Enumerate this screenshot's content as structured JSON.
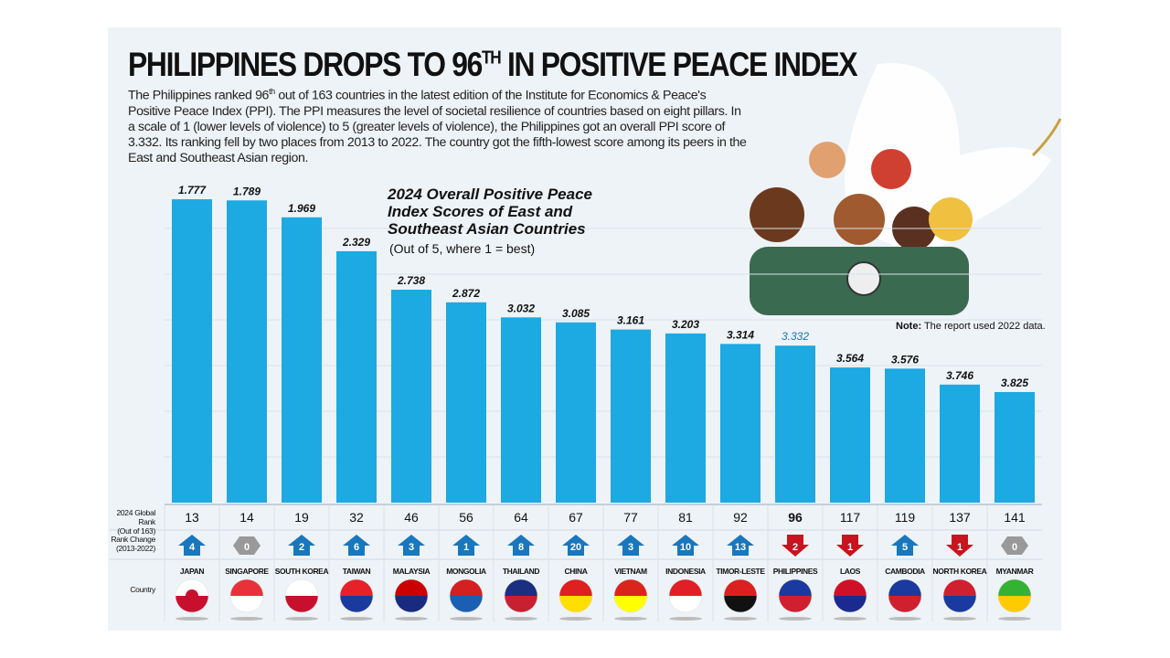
{
  "headline": {
    "main": "PHILIPPINES DROPS TO 96",
    "sup": "TH",
    "rest": " IN POSITIVE PEACE INDEX"
  },
  "intro": {
    "part1": "The Philippines ranked 96",
    "sup": "th",
    "part2": " out of 163 countries in the latest edition of the Institute for Economics & Peace's Positive Peace Index (PPI). The PPI measures the level of societal resilience of countries based on eight pillars. In a scale of 1 (lower levels of violence) to 5 (greater levels of violence), the Philippines got an overall PPI score of 3.332. Its ranking fell by two places from 2013 to 2022. The country got the fifth-lowest score among its peers in the East and Southeast Asian region."
  },
  "note": {
    "label": "Note:",
    "text": " The report used 2022 data."
  },
  "row_labels": {
    "rank": [
      "2024 Global Rank",
      "(Out of 163)"
    ],
    "change": [
      "Rank Change",
      "(2013-2022)"
    ],
    "country": "Country"
  },
  "colors": {
    "bar": "#1da9e1",
    "highlight_text": "#1a75b8",
    "up": "#1877bd",
    "down": "#c8141e",
    "same": "#999999",
    "panel": "#eef3f7"
  },
  "chart_data": {
    "type": "bar",
    "title": "2024 Overall Positive Peace Index Scores of East and Southeast Asian Countries",
    "subtitle": "(Out of 5, where 1 = best)",
    "highlight": "PHILIPPINES",
    "categories": [
      "JAPAN",
      "SINGAPORE",
      "SOUTH KOREA",
      "TAIWAN",
      "MALAYSIA",
      "MONGOLIA",
      "THAILAND",
      "CHINA",
      "VIETNAM",
      "INDONESIA",
      "TIMOR-LESTE",
      "PHILIPPINES",
      "LAOS",
      "CAMBODIA",
      "NORTH KOREA",
      "MYANMAR"
    ],
    "values": [
      1.777,
      1.789,
      1.969,
      2.329,
      2.738,
      2.872,
      3.032,
      3.085,
      3.161,
      3.203,
      3.314,
      3.332,
      3.564,
      3.576,
      3.746,
      3.825
    ],
    "value_labels": [
      "1.777",
      "1.789",
      "1.969",
      "2.329",
      "2.738",
      "2.872",
      "3.032",
      "3.085",
      "3.161",
      "3.203",
      "3.314",
      "3.332",
      "3.564",
      "3.576",
      "3.746",
      "3.825"
    ],
    "global_rank": [
      "13",
      "14",
      "19",
      "32",
      "46",
      "56",
      "64",
      "67",
      "77",
      "81",
      "92",
      "96",
      "117",
      "119",
      "137",
      "141"
    ],
    "rank_change": [
      "4",
      "0",
      "2",
      "6",
      "3",
      "1",
      "8",
      "20",
      "3",
      "10",
      "13",
      "2",
      "1",
      "5",
      "1",
      "0"
    ],
    "rank_direction": [
      "up",
      "same",
      "up",
      "up",
      "up",
      "up",
      "up",
      "up",
      "up",
      "up",
      "up",
      "down",
      "down",
      "up",
      "down",
      "same"
    ],
    "scale": "inverted, 1 = best",
    "ylim": [
      1,
      5
    ],
    "grid": true
  },
  "flags": [
    [
      "#ffffff",
      "#c8102e"
    ],
    [
      "#e8313a",
      "#ffffff"
    ],
    [
      "#ffffff",
      "#c8102e"
    ],
    [
      "#e8202a",
      "#1a3aa0"
    ],
    [
      "#cc0000",
      "#1a2a80"
    ],
    [
      "#d42020",
      "#1a5fb4"
    ],
    [
      "#1a2f80",
      "#c82030"
    ],
    [
      "#e01f1f",
      "#ffde00"
    ],
    [
      "#da251d",
      "#ffff00"
    ],
    [
      "#e01f26",
      "#ffffff"
    ],
    [
      "#dc2020",
      "#111111"
    ],
    [
      "#1a3aa0",
      "#d02030"
    ],
    [
      "#ce1126",
      "#1a2a90"
    ],
    [
      "#1a3aa0",
      "#d02030"
    ],
    [
      "#d02030",
      "#1a3aa0"
    ],
    [
      "#34b233",
      "#fecb00"
    ]
  ]
}
